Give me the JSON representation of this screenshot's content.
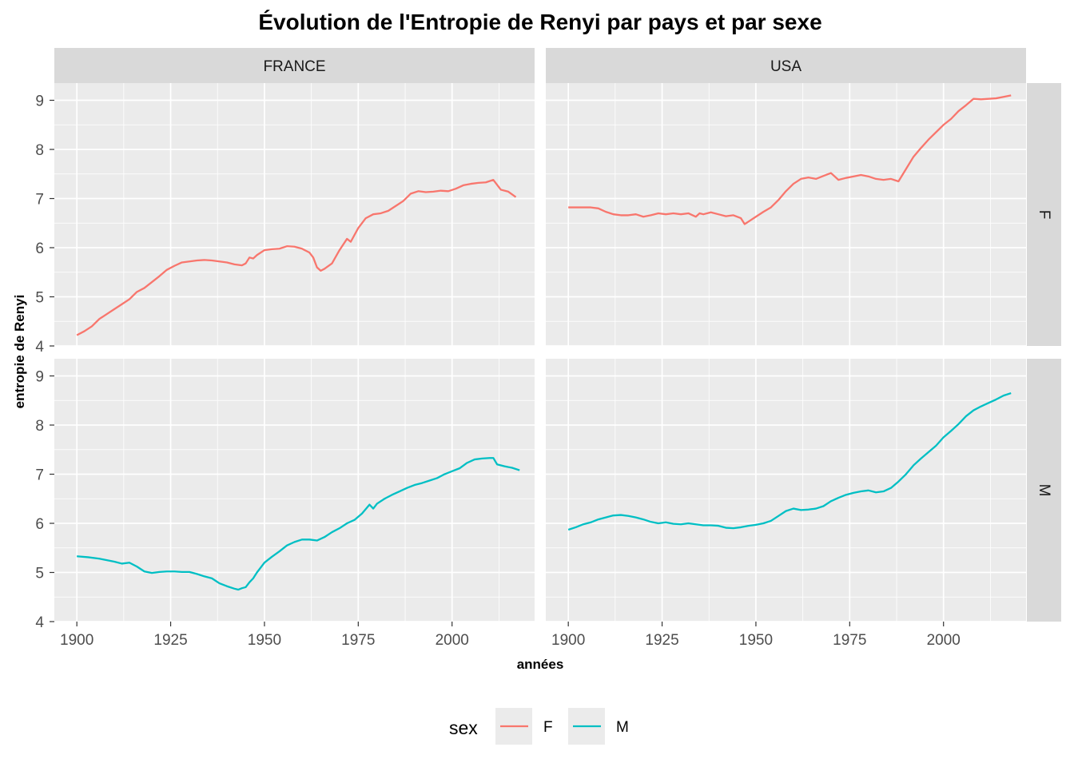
{
  "chart_data": {
    "type": "line",
    "title": "Évolution de l'Entropie de Renyi par pays et par sexe",
    "xlabel": "années",
    "ylabel": "entropie de Renyi",
    "xlim": [
      1894,
      2022
    ],
    "ylim": [
      4,
      9.35
    ],
    "x_ticks": [
      "1900",
      "1925",
      "1950",
      "1975",
      "2000"
    ],
    "y_ticks": [
      "4",
      "5",
      "6",
      "7",
      "8",
      "9"
    ],
    "grid": true,
    "facet_columns": [
      "FRANCE",
      "USA"
    ],
    "facet_rows": [
      "F",
      "M"
    ],
    "colors": {
      "F": "#f8766d",
      "M": "#00bfc4"
    },
    "legend": {
      "title": "sex",
      "entries": [
        "F",
        "M"
      ],
      "position": "bottom"
    },
    "series": [
      {
        "country": "FRANCE",
        "sex": "F",
        "x": [
          1900,
          1902,
          1904,
          1906,
          1908,
          1910,
          1912,
          1914,
          1916,
          1918,
          1920,
          1922,
          1924,
          1926,
          1928,
          1930,
          1932,
          1934,
          1936,
          1938,
          1940,
          1942,
          1944,
          1945,
          1946,
          1947,
          1948,
          1950,
          1952,
          1954,
          1956,
          1958,
          1960,
          1962,
          1963,
          1964,
          1965,
          1966,
          1968,
          1970,
          1972,
          1973,
          1975,
          1977,
          1979,
          1981,
          1983,
          1985,
          1987,
          1989,
          1991,
          1993,
          1995,
          1997,
          1999,
          2001,
          2003,
          2005,
          2007,
          2009,
          2011,
          2013,
          2015,
          2017
        ],
        "y": [
          4.22,
          4.3,
          4.4,
          4.55,
          4.65,
          4.75,
          4.85,
          4.95,
          5.1,
          5.18,
          5.3,
          5.42,
          5.55,
          5.63,
          5.7,
          5.72,
          5.74,
          5.75,
          5.74,
          5.72,
          5.7,
          5.66,
          5.64,
          5.68,
          5.8,
          5.78,
          5.85,
          5.95,
          5.97,
          5.98,
          6.03,
          6.02,
          5.98,
          5.9,
          5.8,
          5.6,
          5.53,
          5.57,
          5.68,
          5.95,
          6.18,
          6.12,
          6.4,
          6.6,
          6.68,
          6.7,
          6.75,
          6.85,
          6.95,
          7.1,
          7.15,
          7.13,
          7.14,
          7.16,
          7.15,
          7.2,
          7.27,
          7.3,
          7.32,
          7.33,
          7.38,
          7.18,
          7.14,
          7.03
        ]
      },
      {
        "country": "USA",
        "sex": "F",
        "x": [
          1900,
          1903,
          1906,
          1908,
          1910,
          1912,
          1914,
          1916,
          1918,
          1920,
          1922,
          1924,
          1926,
          1928,
          1930,
          1932,
          1934,
          1935,
          1936,
          1938,
          1940,
          1942,
          1944,
          1946,
          1947,
          1948,
          1950,
          1952,
          1954,
          1956,
          1958,
          1960,
          1962,
          1964,
          1966,
          1968,
          1970,
          1972,
          1974,
          1976,
          1978,
          1980,
          1982,
          1984,
          1986,
          1988,
          1990,
          1992,
          1994,
          1996,
          1998,
          2000,
          2002,
          2004,
          2006,
          2008,
          2010,
          2012,
          2014,
          2016,
          2018
        ],
        "y": [
          6.82,
          6.82,
          6.82,
          6.8,
          6.73,
          6.68,
          6.66,
          6.66,
          6.68,
          6.63,
          6.66,
          6.7,
          6.68,
          6.7,
          6.68,
          6.7,
          6.63,
          6.7,
          6.68,
          6.72,
          6.68,
          6.64,
          6.66,
          6.6,
          6.48,
          6.53,
          6.63,
          6.73,
          6.82,
          6.97,
          7.15,
          7.3,
          7.4,
          7.43,
          7.4,
          7.46,
          7.52,
          7.38,
          7.42,
          7.45,
          7.48,
          7.45,
          7.4,
          7.38,
          7.4,
          7.35,
          7.6,
          7.85,
          8.03,
          8.2,
          8.35,
          8.5,
          8.62,
          8.78,
          8.9,
          9.03,
          9.02,
          9.03,
          9.04,
          9.07,
          9.1
        ]
      },
      {
        "country": "FRANCE",
        "sex": "M",
        "x": [
          1900,
          1903,
          1906,
          1908,
          1910,
          1912,
          1914,
          1916,
          1918,
          1920,
          1922,
          1924,
          1926,
          1928,
          1930,
          1932,
          1934,
          1936,
          1938,
          1940,
          1942,
          1943,
          1944,
          1945,
          1946,
          1947,
          1948,
          1950,
          1952,
          1954,
          1956,
          1958,
          1960,
          1962,
          1964,
          1966,
          1968,
          1970,
          1972,
          1974,
          1976,
          1978,
          1979,
          1980,
          1982,
          1984,
          1986,
          1988,
          1990,
          1992,
          1994,
          1996,
          1998,
          2000,
          2002,
          2004,
          2006,
          2008,
          2010,
          2011,
          2012,
          2014,
          2016,
          2018
        ],
        "y": [
          5.33,
          5.31,
          5.28,
          5.25,
          5.22,
          5.18,
          5.2,
          5.12,
          5.02,
          4.99,
          5.01,
          5.02,
          5.02,
          5.01,
          5.01,
          4.97,
          4.92,
          4.88,
          4.78,
          4.72,
          4.67,
          4.65,
          4.68,
          4.7,
          4.8,
          4.88,
          5.0,
          5.2,
          5.32,
          5.43,
          5.55,
          5.62,
          5.67,
          5.67,
          5.65,
          5.72,
          5.82,
          5.9,
          6.0,
          6.07,
          6.2,
          6.38,
          6.3,
          6.4,
          6.5,
          6.58,
          6.65,
          6.72,
          6.78,
          6.82,
          6.87,
          6.92,
          7.0,
          7.06,
          7.12,
          7.23,
          7.3,
          7.32,
          7.33,
          7.33,
          7.2,
          7.16,
          7.13,
          7.08
        ]
      },
      {
        "country": "USA",
        "sex": "M",
        "x": [
          1900,
          1902,
          1904,
          1906,
          1908,
          1910,
          1912,
          1914,
          1916,
          1918,
          1920,
          1922,
          1924,
          1926,
          1928,
          1930,
          1932,
          1934,
          1936,
          1938,
          1940,
          1942,
          1944,
          1946,
          1948,
          1950,
          1952,
          1954,
          1956,
          1958,
          1960,
          1962,
          1964,
          1966,
          1968,
          1970,
          1972,
          1974,
          1976,
          1978,
          1980,
          1982,
          1984,
          1986,
          1988,
          1990,
          1992,
          1994,
          1996,
          1998,
          2000,
          2002,
          2004,
          2006,
          2008,
          2010,
          2012,
          2014,
          2016,
          2018
        ],
        "y": [
          5.87,
          5.92,
          5.98,
          6.02,
          6.08,
          6.12,
          6.16,
          6.17,
          6.15,
          6.12,
          6.08,
          6.03,
          6.0,
          6.02,
          5.99,
          5.98,
          6.0,
          5.98,
          5.96,
          5.96,
          5.95,
          5.91,
          5.9,
          5.92,
          5.95,
          5.97,
          6.0,
          6.05,
          6.15,
          6.25,
          6.3,
          6.27,
          6.28,
          6.3,
          6.35,
          6.45,
          6.52,
          6.58,
          6.62,
          6.65,
          6.67,
          6.63,
          6.65,
          6.72,
          6.85,
          7.0,
          7.18,
          7.32,
          7.45,
          7.58,
          7.75,
          7.88,
          8.02,
          8.18,
          8.3,
          8.38,
          8.45,
          8.52,
          8.6,
          8.65
        ]
      }
    ]
  }
}
